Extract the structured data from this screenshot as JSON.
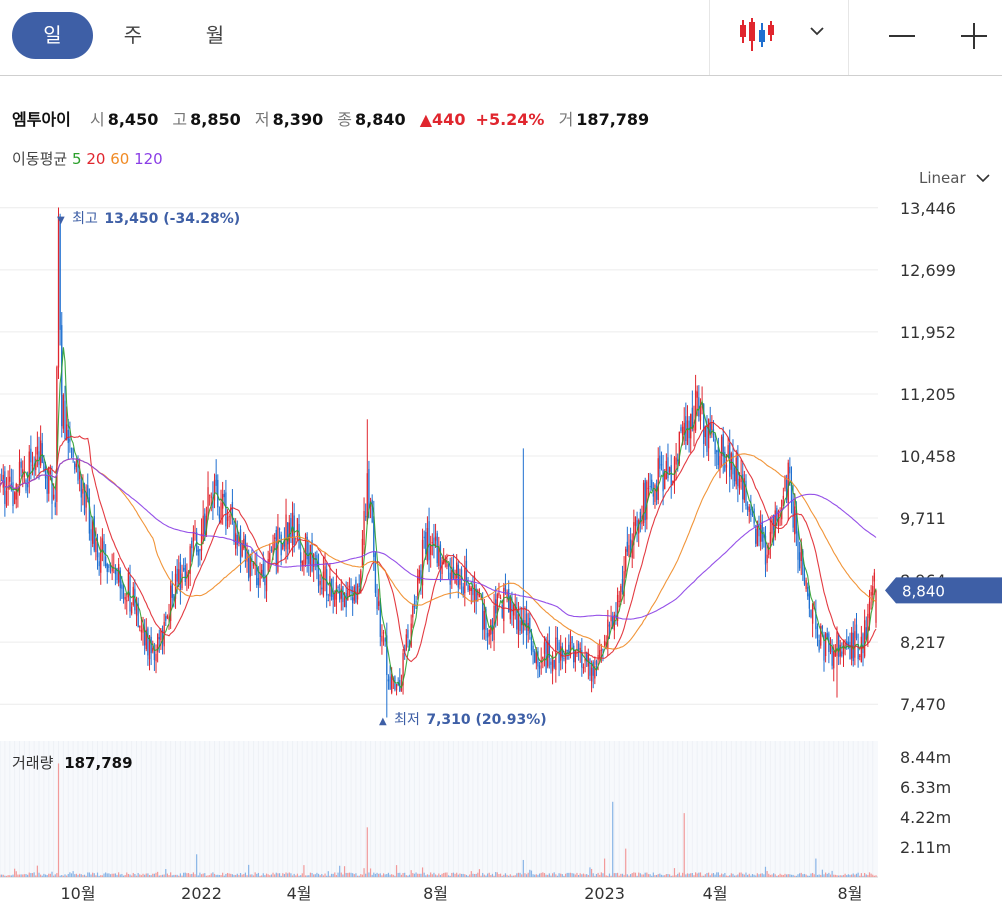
{
  "tabs": {
    "day": "일",
    "week": "주",
    "month": "월"
  },
  "stock": {
    "name": "엠투아이",
    "open_label": "시",
    "open": "8,450",
    "high_label": "고",
    "high": "8,850",
    "low_label": "저",
    "low": "8,390",
    "close_label": "종",
    "close": "8,840",
    "change_arrow": "▲",
    "change": "440",
    "change_pct": "+5.24%",
    "volume_label": "거",
    "volume": "187,789"
  },
  "moving_avg": {
    "label": "이동평균",
    "p5": "5",
    "p20": "20",
    "p60": "60",
    "p120": "120"
  },
  "scale_mode": "Linear",
  "colors": {
    "up": "#e0262e",
    "down": "#1e6fd0",
    "accent": "#3e5fa6",
    "ma5": "#2ca02c",
    "ma20": "#e0262e",
    "ma60": "#f08a24",
    "ma120": "#8a3ee6",
    "vol_up": "#f29a9a",
    "vol_down": "#88b4e6"
  },
  "chart_data": {
    "type": "candlestick",
    "price_ticks": [
      "13,446",
      "12,699",
      "11,952",
      "11,205",
      "10,458",
      "9,711",
      "8,964",
      "8,217",
      "7,470"
    ],
    "price_tick_values": [
      13446,
      12699,
      11952,
      11205,
      10458,
      9711,
      8964,
      8217,
      7470
    ],
    "ylim": [
      7280,
      13600
    ],
    "current_price": 8840,
    "current_price_label": "8,840",
    "high_annotation": {
      "arrow": "▼",
      "label": "최고",
      "value": "13,450 (-34.28%)",
      "price": 13450
    },
    "low_annotation": {
      "arrow": "▲",
      "label": "최저",
      "value": "7,310 (20.93%)",
      "price": 7310
    },
    "x_ticks": [
      "10월",
      "2022",
      "4월",
      "8월",
      "2023",
      "4월",
      "8월"
    ],
    "x_tick_index": [
      48,
      124,
      184,
      268,
      372,
      440,
      523
    ],
    "volume_label": "거래량",
    "volume_value": "187,789",
    "volume_ticks": [
      "8.44m",
      "6.33m",
      "4.22m",
      "2.11m"
    ],
    "volume_tick_values": [
      8.44,
      6.33,
      4.22,
      2.11
    ],
    "price_path": [
      [
        0,
        10000
      ],
      [
        15,
        10200
      ],
      [
        25,
        10400
      ],
      [
        30,
        10100
      ],
      [
        34,
        10000
      ],
      [
        36,
        13400
      ],
      [
        38,
        11000
      ],
      [
        45,
        10500
      ],
      [
        55,
        9700
      ],
      [
        62,
        9300
      ],
      [
        72,
        9100
      ],
      [
        80,
        8800
      ],
      [
        88,
        8450
      ],
      [
        95,
        8000
      ],
      [
        105,
        8800
      ],
      [
        115,
        9200
      ],
      [
        125,
        9600
      ],
      [
        130,
        10100
      ],
      [
        135,
        9900
      ],
      [
        140,
        9700
      ],
      [
        150,
        9300
      ],
      [
        158,
        8900
      ],
      [
        168,
        9300
      ],
      [
        178,
        9650
      ],
      [
        188,
        9300
      ],
      [
        198,
        8950
      ],
      [
        208,
        8850
      ],
      [
        215,
        8750
      ],
      [
        220,
        8800
      ],
      [
        226,
        10200
      ],
      [
        232,
        8700
      ],
      [
        238,
        7900
      ],
      [
        244,
        7600
      ],
      [
        252,
        8300
      ],
      [
        258,
        9000
      ],
      [
        262,
        9500
      ],
      [
        270,
        9200
      ],
      [
        280,
        9000
      ],
      [
        290,
        8900
      ],
      [
        300,
        8400
      ],
      [
        310,
        8700
      ],
      [
        322,
        8400
      ],
      [
        332,
        8000
      ],
      [
        345,
        8100
      ],
      [
        358,
        8000
      ],
      [
        368,
        7950
      ],
      [
        372,
        8200
      ],
      [
        380,
        8700
      ],
      [
        388,
        9500
      ],
      [
        396,
        9900
      ],
      [
        405,
        10200
      ],
      [
        415,
        10300
      ],
      [
        422,
        10900
      ],
      [
        428,
        11000
      ],
      [
        436,
        10700
      ],
      [
        446,
        10400
      ],
      [
        454,
        10200
      ],
      [
        460,
        9850
      ],
      [
        470,
        9350
      ],
      [
        478,
        9600
      ],
      [
        485,
        10200
      ],
      [
        490,
        9500
      ],
      [
        496,
        9000
      ],
      [
        502,
        8350
      ],
      [
        510,
        8100
      ],
      [
        518,
        8200
      ],
      [
        526,
        8150
      ],
      [
        532,
        8300
      ],
      [
        538,
        8840
      ]
    ],
    "vol_spikes": [
      [
        36,
        8.0
      ],
      [
        121,
        1.6
      ],
      [
        226,
        3.5
      ],
      [
        322,
        1.2
      ],
      [
        372,
        1.3
      ],
      [
        377,
        5.3
      ],
      [
        385,
        2.0
      ],
      [
        421,
        4.5
      ],
      [
        502,
        1.3
      ]
    ]
  }
}
